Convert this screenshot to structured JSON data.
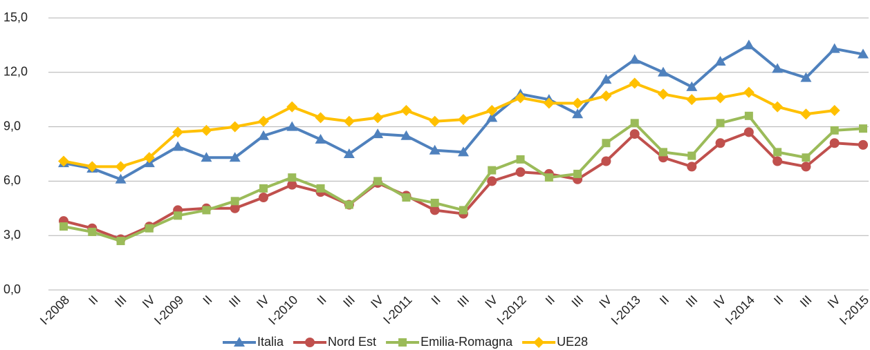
{
  "chart_data": {
    "type": "line",
    "categories": [
      "I-2008",
      "II",
      "III",
      "IV",
      "I-2009",
      "II",
      "III",
      "IV",
      "I-2010",
      "II",
      "III",
      "IV",
      "I-2011",
      "II",
      "III",
      "IV",
      "I-2012",
      "II",
      "III",
      "IV",
      "I-2013",
      "II",
      "III",
      "IV",
      "I-2014",
      "II",
      "III",
      "IV",
      "I-2015"
    ],
    "series": [
      {
        "name": "Italia",
        "color": "#4f81bd",
        "marker": "triangle",
        "values": [
          7.0,
          6.7,
          6.1,
          7.0,
          7.9,
          7.3,
          7.3,
          8.5,
          9.0,
          8.3,
          7.5,
          8.6,
          8.5,
          7.7,
          7.6,
          9.5,
          10.8,
          10.5,
          9.7,
          11.6,
          12.7,
          12.0,
          11.2,
          12.6,
          13.5,
          12.2,
          11.7,
          13.3,
          13.0
        ]
      },
      {
        "name": "Nord Est",
        "color": "#c0504d",
        "marker": "circle",
        "values": [
          3.8,
          3.4,
          2.8,
          3.5,
          4.4,
          4.5,
          4.5,
          5.1,
          5.8,
          5.4,
          4.7,
          5.9,
          5.2,
          4.4,
          4.2,
          6.0,
          6.5,
          6.4,
          6.1,
          7.1,
          8.6,
          7.3,
          6.8,
          8.1,
          8.7,
          7.1,
          6.8,
          8.1,
          8.0
        ]
      },
      {
        "name": "Emilia-Romagna",
        "color": "#9bbb59",
        "marker": "square",
        "values": [
          3.5,
          3.2,
          2.7,
          3.4,
          4.1,
          4.4,
          4.9,
          5.6,
          6.2,
          5.6,
          4.7,
          6.0,
          5.1,
          4.8,
          4.4,
          6.6,
          7.2,
          6.2,
          6.4,
          8.1,
          9.2,
          7.6,
          7.4,
          9.2,
          9.6,
          7.6,
          7.3,
          8.8,
          8.9
        ]
      },
      {
        "name": "UE28",
        "color": "#ffc000",
        "marker": "diamond",
        "values": [
          7.1,
          6.8,
          6.8,
          7.3,
          8.7,
          8.8,
          9.0,
          9.3,
          10.1,
          9.5,
          9.3,
          9.5,
          9.9,
          9.3,
          9.4,
          9.9,
          10.6,
          10.3,
          10.3,
          10.7,
          11.4,
          10.8,
          10.5,
          10.6,
          10.9,
          10.1,
          9.7,
          9.9,
          null
        ]
      }
    ],
    "ylim": [
      0,
      15
    ],
    "yticks": [
      {
        "value": 0,
        "label": "0,0"
      },
      {
        "value": 3,
        "label": "3,0"
      },
      {
        "value": 6,
        "label": "6,0"
      },
      {
        "value": 9,
        "label": "9,0"
      },
      {
        "value": 12,
        "label": "12,0"
      },
      {
        "value": 15,
        "label": "15,0"
      }
    ],
    "grid": true,
    "legend": "bottom"
  }
}
